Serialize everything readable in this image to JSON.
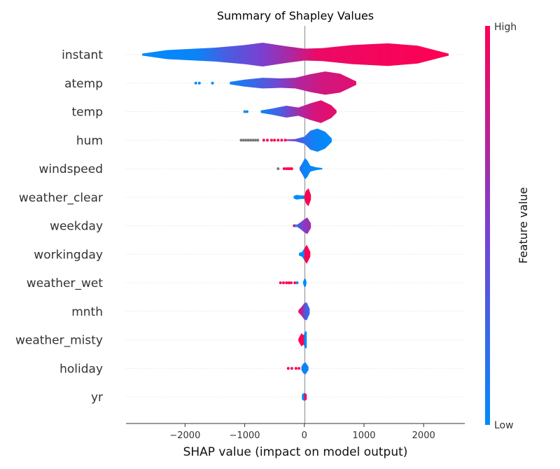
{
  "chart_data": {
    "type": "violin",
    "title": "Summary of Shapley Values",
    "xlabel": "SHAP value (impact on model output)",
    "xlim": [
      -2990,
      2690
    ],
    "x_ticks": [
      -2000,
      -1000,
      0,
      1000,
      2000
    ],
    "x_tick_labels": [
      "−2000",
      "−1000",
      "0",
      "1000",
      "2000"
    ],
    "colorbar": {
      "label": "Feature value",
      "high_label": "High",
      "low_label": "Low",
      "colors": [
        "#008bfb",
        "#7c3fcf",
        "#ff0052"
      ]
    },
    "grid": "dotted-horizontal",
    "features": [
      {
        "name": "instant",
        "range": [
          -2720,
          2420
        ],
        "profile": [
          [
            -2720,
            0.08
          ],
          [
            -2300,
            0.38
          ],
          [
            -1500,
            0.58
          ],
          [
            -1000,
            0.8
          ],
          [
            -700,
            1.0
          ],
          [
            -300,
            0.7
          ],
          [
            0,
            0.5
          ],
          [
            300,
            0.55
          ],
          [
            800,
            0.8
          ],
          [
            1400,
            0.95
          ],
          [
            1900,
            0.75
          ],
          [
            2420,
            0.08
          ]
        ],
        "colors": [
          [
            -2720,
            0
          ],
          [
            -1800,
            0.05
          ],
          [
            -1300,
            0.3
          ],
          [
            -700,
            0.5
          ],
          [
            -200,
            0.7
          ],
          [
            200,
            0.92
          ],
          [
            2420,
            1
          ]
        ],
        "points": []
      },
      {
        "name": "atemp",
        "range": [
          -1250,
          870
        ],
        "profile": [
          [
            -1250,
            0.1
          ],
          [
            -1000,
            0.3
          ],
          [
            -700,
            0.45
          ],
          [
            -400,
            0.4
          ],
          [
            -150,
            0.45
          ],
          [
            100,
            0.75
          ],
          [
            350,
            0.98
          ],
          [
            600,
            0.8
          ],
          [
            870,
            0.15
          ]
        ],
        "colors": [
          [
            -1250,
            0.05
          ],
          [
            -800,
            0.25
          ],
          [
            -450,
            0.45
          ],
          [
            -100,
            0.7
          ],
          [
            300,
            0.82
          ],
          [
            870,
            0.88
          ]
        ],
        "points": [
          [
            -1820,
            0
          ],
          [
            -1760,
            0
          ],
          [
            -1540,
            0
          ]
        ]
      },
      {
        "name": "temp",
        "range": [
          -730,
          540
        ],
        "profile": [
          [
            -730,
            0.1
          ],
          [
            -550,
            0.25
          ],
          [
            -300,
            0.5
          ],
          [
            -100,
            0.35
          ],
          [
            100,
            0.7
          ],
          [
            280,
            0.95
          ],
          [
            450,
            0.55
          ],
          [
            540,
            0.1
          ]
        ],
        "colors": [
          [
            -730,
            0.05
          ],
          [
            -350,
            0.35
          ],
          [
            -50,
            0.7
          ],
          [
            200,
            0.85
          ],
          [
            540,
            0.9
          ]
        ],
        "points": [
          [
            -1000,
            0
          ],
          [
            -960,
            0
          ]
        ]
      },
      {
        "name": "hum",
        "range": [
          -300,
          460
        ],
        "profile": [
          [
            -300,
            0.06
          ],
          [
            -150,
            0.1
          ],
          [
            0,
            0.3
          ],
          [
            100,
            0.8
          ],
          [
            220,
            0.98
          ],
          [
            350,
            0.7
          ],
          [
            460,
            0.15
          ]
        ],
        "colors": [
          [
            -300,
            0.6
          ],
          [
            -150,
            0.4
          ],
          [
            0,
            0.2
          ],
          [
            200,
            0.05
          ],
          [
            460,
            0.0
          ]
        ],
        "points": [
          [
            -1060,
            -1
          ],
          [
            -1020,
            -1
          ],
          [
            -980,
            -1
          ],
          [
            -940,
            -1
          ],
          [
            -900,
            -1
          ],
          [
            -860,
            -1
          ],
          [
            -820,
            -1
          ],
          [
            -780,
            -1
          ],
          [
            -680,
            1
          ],
          [
            -620,
            1
          ],
          [
            -550,
            1
          ],
          [
            -500,
            1
          ],
          [
            -440,
            1
          ],
          [
            -380,
            1
          ],
          [
            -320,
            1
          ]
        ]
      },
      {
        "name": "windspeed",
        "range": [
          -80,
          300
        ],
        "profile": [
          [
            -80,
            0.1
          ],
          [
            -30,
            0.5
          ],
          [
            10,
            0.9
          ],
          [
            50,
            0.7
          ],
          [
            100,
            0.25
          ],
          [
            200,
            0.12
          ],
          [
            300,
            0.06
          ]
        ],
        "colors": [
          [
            -80,
            0.2
          ],
          [
            0,
            0.05
          ],
          [
            300,
            0.0
          ]
        ],
        "points": [
          [
            -440,
            -1
          ],
          [
            -340,
            1
          ],
          [
            -300,
            1
          ],
          [
            -270,
            1
          ],
          [
            -240,
            1
          ],
          [
            -210,
            1
          ]
        ]
      },
      {
        "name": "weather_clear",
        "range": [
          -180,
          110
        ],
        "profile": [
          [
            -180,
            0.1
          ],
          [
            -130,
            0.2
          ],
          [
            -60,
            0.15
          ],
          [
            0,
            0.15
          ],
          [
            30,
            0.55
          ],
          [
            70,
            0.75
          ],
          [
            110,
            0.2
          ]
        ],
        "colors": [
          [
            -180,
            0.0
          ],
          [
            -20,
            0.0
          ],
          [
            20,
            1
          ],
          [
            110,
            1
          ]
        ],
        "points": []
      },
      {
        "name": "weekday",
        "range": [
          -120,
          110
        ],
        "profile": [
          [
            -120,
            0.1
          ],
          [
            -60,
            0.3
          ],
          [
            0,
            0.55
          ],
          [
            50,
            0.7
          ],
          [
            110,
            0.2
          ]
        ],
        "colors": [
          [
            -120,
            0.3
          ],
          [
            0,
            0.55
          ],
          [
            110,
            0.65
          ]
        ],
        "points": [
          [
            -170,
            1
          ],
          [
            -140,
            0
          ]
        ]
      },
      {
        "name": "workingday",
        "range": [
          -90,
          100
        ],
        "profile": [
          [
            -90,
            0.12
          ],
          [
            -40,
            0.2
          ],
          [
            0,
            0.5
          ],
          [
            40,
            0.8
          ],
          [
            100,
            0.2
          ]
        ],
        "colors": [
          [
            -90,
            0.0
          ],
          [
            -10,
            0.0
          ],
          [
            10,
            1
          ],
          [
            100,
            1
          ]
        ],
        "points": []
      },
      {
        "name": "weather_wet",
        "range": [
          -20,
          35
        ],
        "profile": [
          [
            -20,
            0.1
          ],
          [
            0,
            0.35
          ],
          [
            20,
            0.35
          ],
          [
            35,
            0.1
          ]
        ],
        "colors": [
          [
            -20,
            0.0
          ],
          [
            35,
            0.0
          ]
        ],
        "points": [
          [
            -400,
            1
          ],
          [
            -350,
            1
          ],
          [
            -300,
            1
          ],
          [
            -260,
            1
          ],
          [
            -220,
            1
          ],
          [
            -160,
            1
          ],
          [
            -120,
            0
          ]
        ]
      },
      {
        "name": "mnth",
        "range": [
          -100,
          90
        ],
        "profile": [
          [
            -100,
            0.1
          ],
          [
            -50,
            0.35
          ],
          [
            0,
            0.7
          ],
          [
            40,
            0.75
          ],
          [
            90,
            0.2
          ]
        ],
        "colors": [
          [
            -100,
            1
          ],
          [
            -40,
            0.7
          ],
          [
            20,
            0.3
          ],
          [
            90,
            0.2
          ]
        ],
        "points": []
      },
      {
        "name": "weather_misty",
        "range": [
          -100,
          40
        ],
        "profile": [
          [
            -100,
            0.1
          ],
          [
            -50,
            0.55
          ],
          [
            -10,
            0.4
          ],
          [
            10,
            0.7
          ],
          [
            40,
            0.7
          ]
        ],
        "colors": [
          [
            -100,
            1
          ],
          [
            -15,
            1
          ],
          [
            5,
            0.0
          ],
          [
            40,
            0.0
          ]
        ],
        "points": []
      },
      {
        "name": "holiday",
        "range": [
          -50,
          70
        ],
        "profile": [
          [
            -50,
            0.15
          ],
          [
            -10,
            0.45
          ],
          [
            20,
            0.5
          ],
          [
            70,
            0.15
          ]
        ],
        "colors": [
          [
            -50,
            0.1
          ],
          [
            70,
            0.0
          ]
        ],
        "points": [
          [
            -270,
            1
          ],
          [
            -210,
            1
          ],
          [
            -140,
            1
          ],
          [
            -90,
            1
          ]
        ]
      },
      {
        "name": "yr",
        "range": [
          -40,
          40
        ],
        "profile": [
          [
            -40,
            0.22
          ],
          [
            -10,
            0.32
          ],
          [
            10,
            0.32
          ],
          [
            40,
            0.22
          ]
        ],
        "colors": [
          [
            -40,
            0.0
          ],
          [
            -5,
            0.0
          ],
          [
            5,
            1
          ],
          [
            40,
            1
          ]
        ],
        "points": []
      }
    ]
  }
}
